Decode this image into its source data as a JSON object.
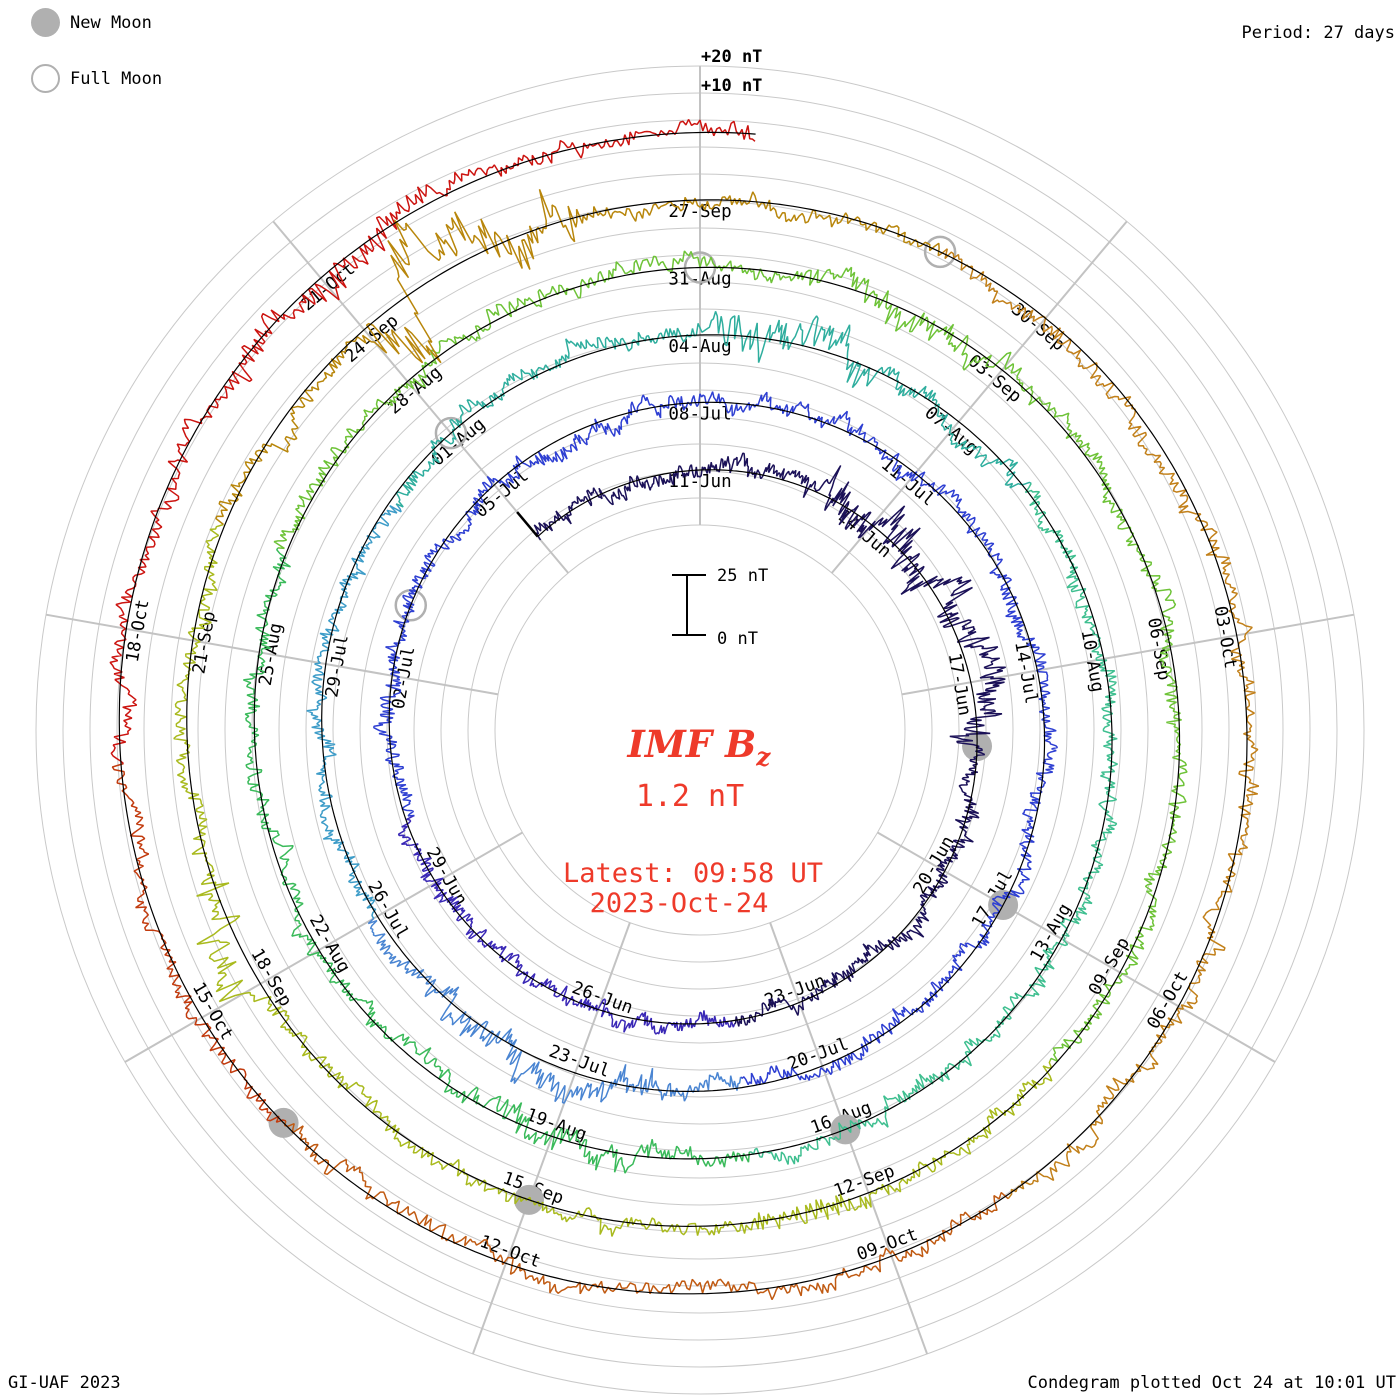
{
  "legend": {
    "new_moon_label": "New Moon",
    "full_moon_label": "Full Moon"
  },
  "period_label": "Period: 27 days",
  "amplitude_labels": {
    "plus20": "+20 nT",
    "plus10": "+10 nT"
  },
  "scale_bar": {
    "top_label": "25 nT",
    "bottom_label": "0 nT"
  },
  "center_text": {
    "title_main": "IMF B",
    "title_subscript": "z",
    "current_value": "1.2 nT",
    "latest_line": "Latest: 09:58 UT",
    "date_line": "2023-Oct-24"
  },
  "footer": {
    "credit": "GI-UAF 2023",
    "plotted": "Condegram plotted Oct 24 at 10:01 UT"
  },
  "colors": {
    "accent_red_text": "#ee3a2a",
    "grid": "#c9c9c9",
    "spoke": "#c3c3c3",
    "baseline": "#000000",
    "moon_gray": "#b0b0b0",
    "date_label": "#000000"
  },
  "chart_data": {
    "type": "line",
    "variant": "condegram spiral (polar plot, one turn = one 27-day solar rotation, time runs clockwise and outward)",
    "title": "IMF Bz",
    "units": "nT",
    "period_days": 27,
    "top_anchor_date": "2023-06-11",
    "series_start": "2023-06-08",
    "series_end": "2023-10-24",
    "series_end_day_fraction": 0.415,
    "latest_value_nT": 1.2,
    "latest_time_ut": "09:58 UT",
    "gridline_step_nT": 10,
    "scale_bar_nT": 25,
    "spokes": [
      {
        "angle_deg": 0,
        "labels": [
          {
            "text": "11-Jun",
            "date": "2023-06-11"
          },
          {
            "text": "08-Jul",
            "date": "2023-07-08"
          },
          {
            "text": "04-Aug",
            "date": "2023-08-04"
          },
          {
            "text": "31-Aug",
            "date": "2023-08-31"
          },
          {
            "text": "27-Sep",
            "date": "2023-09-27"
          }
        ]
      },
      {
        "angle_deg": 40,
        "labels": [
          {
            "text": "14-Jun",
            "date": "2023-06-14"
          },
          {
            "text": "11-Jul",
            "date": "2023-07-11"
          },
          {
            "text": "07-Aug",
            "date": "2023-08-07"
          },
          {
            "text": "03-Sep",
            "date": "2023-09-03"
          },
          {
            "text": "30-Sep",
            "date": "2023-09-30"
          }
        ]
      },
      {
        "angle_deg": 80,
        "labels": [
          {
            "text": "17-Jun",
            "date": "2023-06-17"
          },
          {
            "text": "14-Jul",
            "date": "2023-07-14"
          },
          {
            "text": "10-Aug",
            "date": "2023-08-10"
          },
          {
            "text": "06-Sep",
            "date": "2023-09-06"
          },
          {
            "text": "03-Oct",
            "date": "2023-10-03"
          }
        ]
      },
      {
        "angle_deg": 120,
        "labels": [
          {
            "text": "20-Jun",
            "date": "2023-06-20"
          },
          {
            "text": "17-Jul",
            "date": "2023-07-17"
          },
          {
            "text": "13-Aug",
            "date": "2023-08-13"
          },
          {
            "text": "09-Sep",
            "date": "2023-09-09"
          },
          {
            "text": "06-Oct",
            "date": "2023-10-06"
          }
        ]
      },
      {
        "angle_deg": 160,
        "labels": [
          {
            "text": "23-Jun",
            "date": "2023-06-23"
          },
          {
            "text": "20-Jul",
            "date": "2023-07-20"
          },
          {
            "text": "16-Aug",
            "date": "2023-08-16"
          },
          {
            "text": "12-Sep",
            "date": "2023-09-12"
          },
          {
            "text": "09-Oct",
            "date": "2023-10-09"
          }
        ]
      },
      {
        "angle_deg": 200,
        "labels": [
          {
            "text": "26-Jun",
            "date": "2023-06-26"
          },
          {
            "text": "23-Jul",
            "date": "2023-07-23"
          },
          {
            "text": "19-Aug",
            "date": "2023-08-19"
          },
          {
            "text": "15-Sep",
            "date": "2023-09-15"
          },
          {
            "text": "12-Oct",
            "date": "2023-10-12"
          }
        ]
      },
      {
        "angle_deg": 240,
        "labels": [
          {
            "text": "29-Jun",
            "date": "2023-06-29"
          },
          {
            "text": "26-Jul",
            "date": "2023-07-26"
          },
          {
            "text": "22-Aug",
            "date": "2023-08-22"
          },
          {
            "text": "18-Sep",
            "date": "2023-09-18"
          },
          {
            "text": "15-Oct",
            "date": "2023-10-15"
          }
        ]
      },
      {
        "angle_deg": 280,
        "labels": [
          {
            "text": "02-Jul",
            "date": "2023-07-02"
          },
          {
            "text": "29-Jul",
            "date": "2023-07-29"
          },
          {
            "text": "25-Aug",
            "date": "2023-08-25"
          },
          {
            "text": "21-Sep",
            "date": "2023-09-21"
          },
          {
            "text": "18-Oct",
            "date": "2023-10-18"
          }
        ]
      },
      {
        "angle_deg": 320,
        "labels": [
          {
            "text": "05-Jul",
            "date": "2023-07-05"
          },
          {
            "text": "01-Aug",
            "date": "2023-08-01"
          },
          {
            "text": "28-Aug",
            "date": "2023-08-28"
          },
          {
            "text": "24-Sep",
            "date": "2023-09-24"
          },
          {
            "text": "21-Oct",
            "date": "2023-10-21"
          }
        ]
      }
    ],
    "color_segments": [
      {
        "start": "2023-06-08",
        "end": "2023-06-24",
        "color": "#1b1158"
      },
      {
        "start": "2023-06-24",
        "end": "2023-06-30",
        "color": "#3a28b6"
      },
      {
        "start": "2023-06-30",
        "end": "2023-07-21",
        "color": "#2e3fd2"
      },
      {
        "start": "2023-07-21",
        "end": "2023-07-26",
        "color": "#4a85d2"
      },
      {
        "start": "2023-07-26",
        "end": "2023-07-31",
        "color": "#3d9cc8"
      },
      {
        "start": "2023-07-31",
        "end": "2023-08-08",
        "color": "#2fae9e"
      },
      {
        "start": "2023-08-08",
        "end": "2023-08-17",
        "color": "#3fbf90"
      },
      {
        "start": "2023-08-17",
        "end": "2023-08-26",
        "color": "#3aba5a"
      },
      {
        "start": "2023-08-26",
        "end": "2023-09-10",
        "color": "#6ec338"
      },
      {
        "start": "2023-09-10",
        "end": "2023-09-22",
        "color": "#a9ba1e"
      },
      {
        "start": "2023-09-22",
        "end": "2023-09-29",
        "color": "#b8860b"
      },
      {
        "start": "2023-09-29",
        "end": "2023-10-08",
        "color": "#c2801a"
      },
      {
        "start": "2023-10-08",
        "end": "2023-10-14",
        "color": "#c05a12"
      },
      {
        "start": "2023-10-14",
        "end": "2023-10-17",
        "color": "#c23b0e"
      },
      {
        "start": "2023-10-17",
        "end": "2023-10-25",
        "color": "#cc1410"
      }
    ],
    "new_moon_dates": [
      "2023-06-18",
      "2023-07-17",
      "2023-08-16",
      "2023-09-15",
      "2023-10-14"
    ],
    "full_moon_dates": [
      "2023-07-03",
      "2023-08-01",
      "2023-08-31",
      "2023-09-29"
    ],
    "disturbed_periods": [
      {
        "start": "2023-06-13",
        "end": "2023-06-18",
        "mult": 2.0
      },
      {
        "start": "2023-07-22",
        "end": "2023-07-25",
        "mult": 1.7
      },
      {
        "start": "2023-08-04",
        "end": "2023-08-06",
        "mult": 2.1
      },
      {
        "start": "2023-08-18",
        "end": "2023-08-20",
        "mult": 1.6
      },
      {
        "start": "2023-09-01",
        "end": "2023-09-03",
        "mult": 1.7
      },
      {
        "start": "2023-09-12",
        "end": "2023-09-13",
        "mult": 1.6
      },
      {
        "start": "2023-09-18",
        "end": "2023-09-19",
        "mult": 2.2
      },
      {
        "start": "2023-09-24",
        "end": "2023-09-26",
        "mult": 3.4
      },
      {
        "start": "2023-10-20",
        "end": "2023-10-22",
        "mult": 1.8
      }
    ]
  }
}
